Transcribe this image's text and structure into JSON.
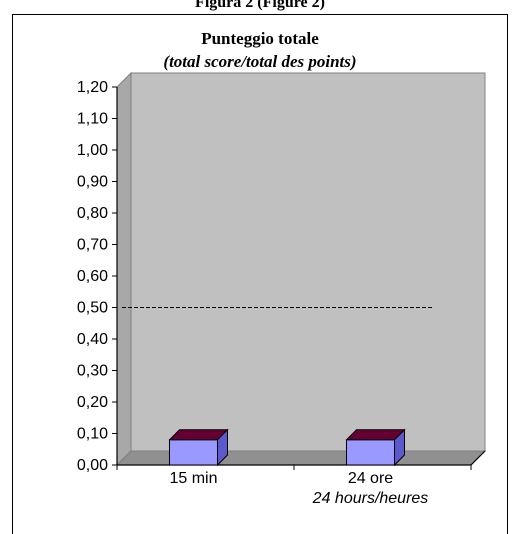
{
  "header": {
    "title": "Figura 2 (Figure 2)"
  },
  "chart_data": {
    "type": "bar",
    "title": "Punteggio totale",
    "subtitle": "(total score/total des points)",
    "categories": [
      "15 min",
      "24 ore"
    ],
    "category_sublabels": [
      "",
      "24 hours/heures"
    ],
    "values": [
      0.08,
      0.08
    ],
    "ylim": [
      0,
      1.2
    ],
    "yticks": [
      "0,00",
      "0,10",
      "0,20",
      "0,30",
      "0,40",
      "0,50",
      "0,60",
      "0,70",
      "0,80",
      "0,90",
      "1,00",
      "1,10",
      "1,20"
    ],
    "reference_line": 0.5,
    "grid": false,
    "colors": {
      "plot_wall": "#c0c0c0",
      "bar_front": "#9999ff",
      "bar_top": "#660033",
      "bar_side": "#5a5acc",
      "reference_line": "#000000"
    }
  }
}
